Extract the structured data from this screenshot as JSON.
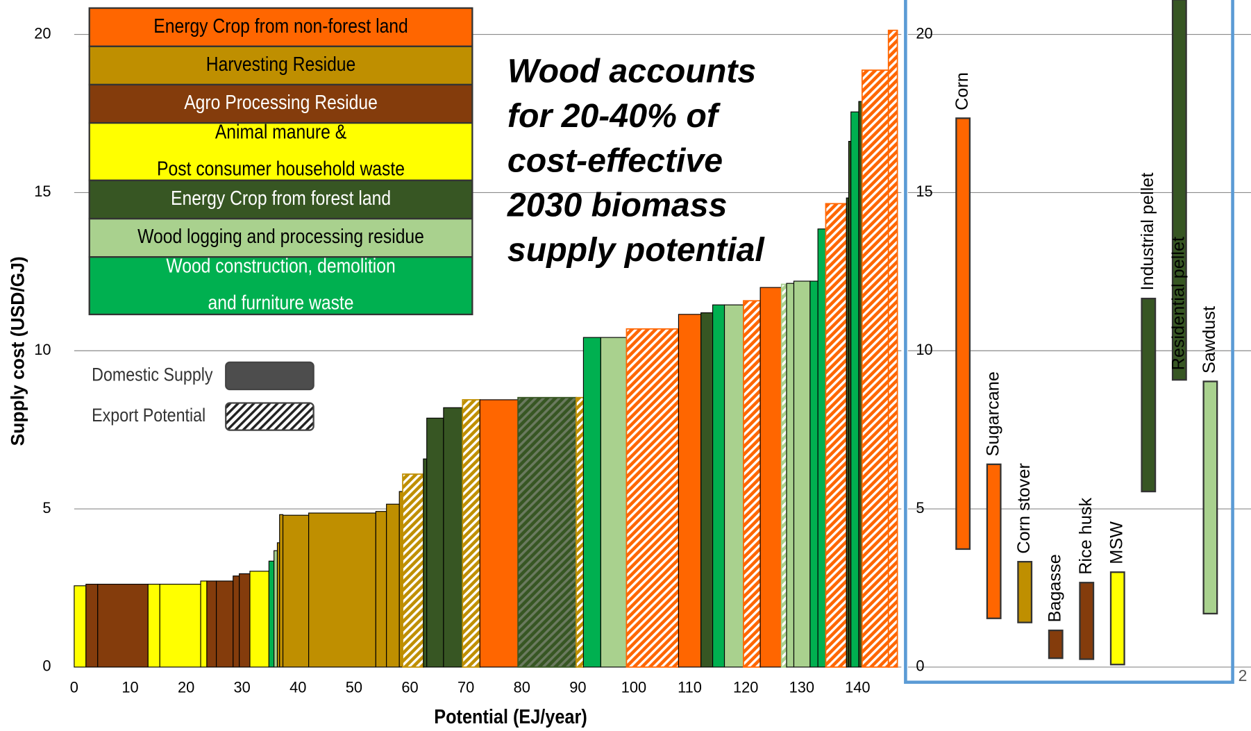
{
  "chart_data": [
    {
      "type": "supply-curve",
      "y_label": "Supply cost (USD/GJ)",
      "x_label": "Potential (EJ/year)",
      "xlim": [
        0,
        147.1
      ],
      "ylim": [
        0,
        21.1
      ],
      "xticks": [
        0,
        10,
        20,
        30,
        40,
        50,
        60,
        70,
        80,
        90,
        100,
        110,
        120,
        130,
        140
      ],
      "yticks": [
        0,
        5,
        10,
        15,
        20
      ],
      "grid": true,
      "categories": [
        {
          "lines": [
            "Energy Crop from non-forest land"
          ],
          "color": "#ff6600",
          "text_color": "#000000"
        },
        {
          "lines": [
            "Harvesting Residue"
          ],
          "color": "#bf8f00",
          "text_color": "#000000"
        },
        {
          "lines": [
            "Agro Processing Residue"
          ],
          "color": "#843c0c",
          "text_color": "#ffffff"
        },
        {
          "lines": [
            "Animal manure &",
            "Post consumer household waste"
          ],
          "color": "#ffff00",
          "text_color": "#000000"
        },
        {
          "lines": [
            "Energy Crop from forest land"
          ],
          "color": "#375623",
          "text_color": "#ffffff"
        },
        {
          "lines": [
            "Wood logging and processing residue"
          ],
          "color": "#a9d18e",
          "text_color": "#000000"
        },
        {
          "lines": [
            "Wood construction, demolition",
            "and furniture waste"
          ],
          "color": "#00b050",
          "text_color": "#ffffff"
        }
      ],
      "supply_types": [
        "Domestic Supply",
        "Export Potential"
      ],
      "bars": [
        {
          "category": 3,
          "export": false,
          "potential": 2.1,
          "cost": 2.57
        },
        {
          "category": 2,
          "export": false,
          "potential": 2.1,
          "cost": 2.62
        },
        {
          "category": 2,
          "export": false,
          "potential": 9,
          "cost": 2.62
        },
        {
          "category": 3,
          "export": false,
          "potential": 2.1,
          "cost": 2.62
        },
        {
          "category": 3,
          "export": false,
          "potential": 7.3,
          "cost": 2.62
        },
        {
          "category": 3,
          "export": false,
          "potential": 1.1,
          "cost": 2.72
        },
        {
          "category": 2,
          "export": false,
          "potential": 1.7,
          "cost": 2.72
        },
        {
          "category": 2,
          "export": false,
          "potential": 3,
          "cost": 2.72
        },
        {
          "category": 2,
          "export": false,
          "potential": 1.1,
          "cost": 2.88
        },
        {
          "category": 2,
          "export": false,
          "potential": 1.9,
          "cost": 2.95
        },
        {
          "category": 3,
          "export": false,
          "potential": 3.4,
          "cost": 3.03
        },
        {
          "category": 6,
          "export": false,
          "potential": 0.9,
          "cost": 3.35
        },
        {
          "category": 5,
          "export": false,
          "potential": 0.6,
          "cost": 3.68
        },
        {
          "category": 1,
          "export": false,
          "potential": 0.4,
          "cost": 3.93
        },
        {
          "category": 1,
          "export": false,
          "potential": 0.6,
          "cost": 4.82
        },
        {
          "category": 1,
          "export": false,
          "potential": 4.6,
          "cost": 4.8
        },
        {
          "category": 1,
          "export": false,
          "potential": 12,
          "cost": 4.87
        },
        {
          "category": 1,
          "export": false,
          "potential": 1.9,
          "cost": 4.92
        },
        {
          "category": 1,
          "export": false,
          "potential": 2.3,
          "cost": 5.15
        },
        {
          "category": 1,
          "export": false,
          "potential": 0.6,
          "cost": 5.55
        },
        {
          "category": 1,
          "export": true,
          "potential": 3.7,
          "cost": 6.1
        },
        {
          "category": 4,
          "export": false,
          "potential": 0.6,
          "cost": 6.58
        },
        {
          "category": 4,
          "export": false,
          "potential": 3,
          "cost": 7.87
        },
        {
          "category": 4,
          "export": false,
          "potential": 3.4,
          "cost": 8.2
        },
        {
          "category": 1,
          "export": true,
          "potential": 3.1,
          "cost": 8.45
        },
        {
          "category": 0,
          "export": false,
          "potential": 6.8,
          "cost": 8.45
        },
        {
          "category": 4,
          "export": true,
          "potential": 10.4,
          "cost": 8.52
        },
        {
          "category": 1,
          "export": true,
          "potential": 1.3,
          "cost": 8.52
        },
        {
          "category": 6,
          "export": false,
          "potential": 3.1,
          "cost": 10.42
        },
        {
          "category": 5,
          "export": false,
          "potential": 4.6,
          "cost": 10.42
        },
        {
          "category": 0,
          "export": true,
          "potential": 9.3,
          "cost": 10.69
        },
        {
          "category": 0,
          "export": false,
          "potential": 4,
          "cost": 11.15
        },
        {
          "category": 4,
          "export": false,
          "potential": 2.1,
          "cost": 11.2
        },
        {
          "category": 6,
          "export": false,
          "potential": 2.1,
          "cost": 11.45
        },
        {
          "category": 5,
          "export": false,
          "potential": 3.4,
          "cost": 11.45
        },
        {
          "category": 0,
          "export": true,
          "potential": 3,
          "cost": 11.58
        },
        {
          "category": 0,
          "export": false,
          "potential": 3.8,
          "cost": 12.0
        },
        {
          "category": 5,
          "export": true,
          "potential": 0.9,
          "cost": 12.1
        },
        {
          "category": 5,
          "export": false,
          "potential": 1.3,
          "cost": 12.13
        },
        {
          "category": 5,
          "export": false,
          "potential": 2.9,
          "cost": 12.2
        },
        {
          "category": 6,
          "export": false,
          "potential": 1.4,
          "cost": 12.2
        },
        {
          "category": 6,
          "export": false,
          "potential": 1.4,
          "cost": 13.85
        },
        {
          "category": 0,
          "export": true,
          "potential": 3.7,
          "cost": 14.65
        },
        {
          "category": 4,
          "export": false,
          "potential": 0.4,
          "cost": 14.83
        },
        {
          "category": 4,
          "export": false,
          "potential": 0.4,
          "cost": 16.62
        },
        {
          "category": 6,
          "export": false,
          "potential": 1.4,
          "cost": 17.55
        },
        {
          "category": 4,
          "export": false,
          "potential": 0.6,
          "cost": 17.88
        },
        {
          "category": 0,
          "export": true,
          "potential": 4.7,
          "cost": 18.87
        },
        {
          "category": 0,
          "export": true,
          "potential": 1.6,
          "cost": 20.13
        }
      ],
      "annotation": [
        "Wood accounts",
        "for 20-40% of",
        "cost-effective",
        "2030 biomass",
        "supply potential"
      ]
    },
    {
      "type": "range-bar",
      "ylim": [
        0,
        21.1
      ],
      "yticks": [
        0,
        5,
        10,
        15,
        20
      ],
      "grid": true,
      "categories": [
        "Corn",
        "Sugarcane",
        "Corn stover",
        "Bagasse",
        "Rice husk",
        "MSW",
        "Industrial pellet",
        "Residential pellet",
        "Sawdust"
      ],
      "low": [
        3.73,
        1.54,
        1.41,
        0.28,
        0.25,
        0.08,
        5.55,
        9.08,
        1.69
      ],
      "high": [
        17.35,
        6.41,
        3.33,
        1.16,
        2.67,
        3.0,
        11.65,
        21.1,
        9.03
      ],
      "colors": [
        "#ff6600",
        "#ff6600",
        "#bf8f00",
        "#843c0c",
        "#843c0c",
        "#ffff00",
        "#375623",
        "#375623",
        "#a9d18e"
      ],
      "border_color": "#5b9bd5"
    }
  ],
  "page_number": "2"
}
